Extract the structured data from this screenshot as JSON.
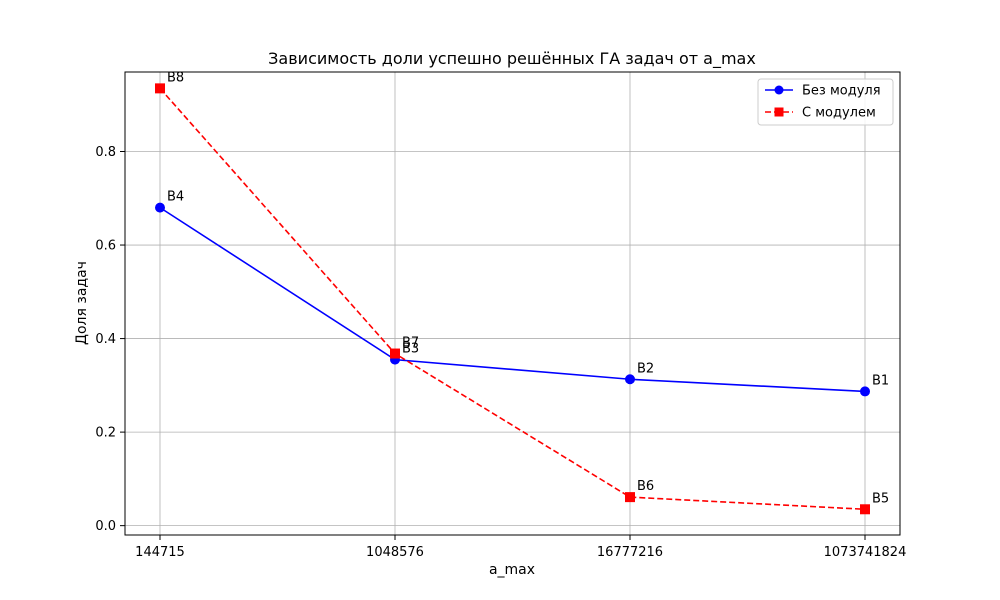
{
  "chart_data": {
    "type": "line",
    "title": "Зависимость доли успешно решённых ГА задач от a_max",
    "xlabel": "a_max",
    "ylabel": "Доля задач",
    "x_scale": "categorical",
    "categories": [
      "144715",
      "1048576",
      "16777216",
      "1073741824"
    ],
    "ylim": [
      -0.02,
      0.97
    ],
    "yticks": [
      0.0,
      0.2,
      0.4,
      0.6,
      0.8
    ],
    "ytick_labels": [
      "0.0",
      "0.2",
      "0.4",
      "0.6",
      "0.8"
    ],
    "grid": true,
    "legend_position": "top-right",
    "series": [
      {
        "name": "Без модуля",
        "color": "#0000ff",
        "line_style": "solid",
        "marker": "circle",
        "values": [
          0.68,
          0.355,
          0.313,
          0.287
        ],
        "point_labels": [
          "B4",
          "B3",
          "B2",
          "B1"
        ]
      },
      {
        "name": "С модулем",
        "color": "#ff0000",
        "line_style": "dashed",
        "marker": "square",
        "values": [
          0.935,
          0.368,
          0.061,
          0.035
        ],
        "point_labels": [
          "B8",
          "B7",
          "B6",
          "B5"
        ]
      }
    ]
  }
}
